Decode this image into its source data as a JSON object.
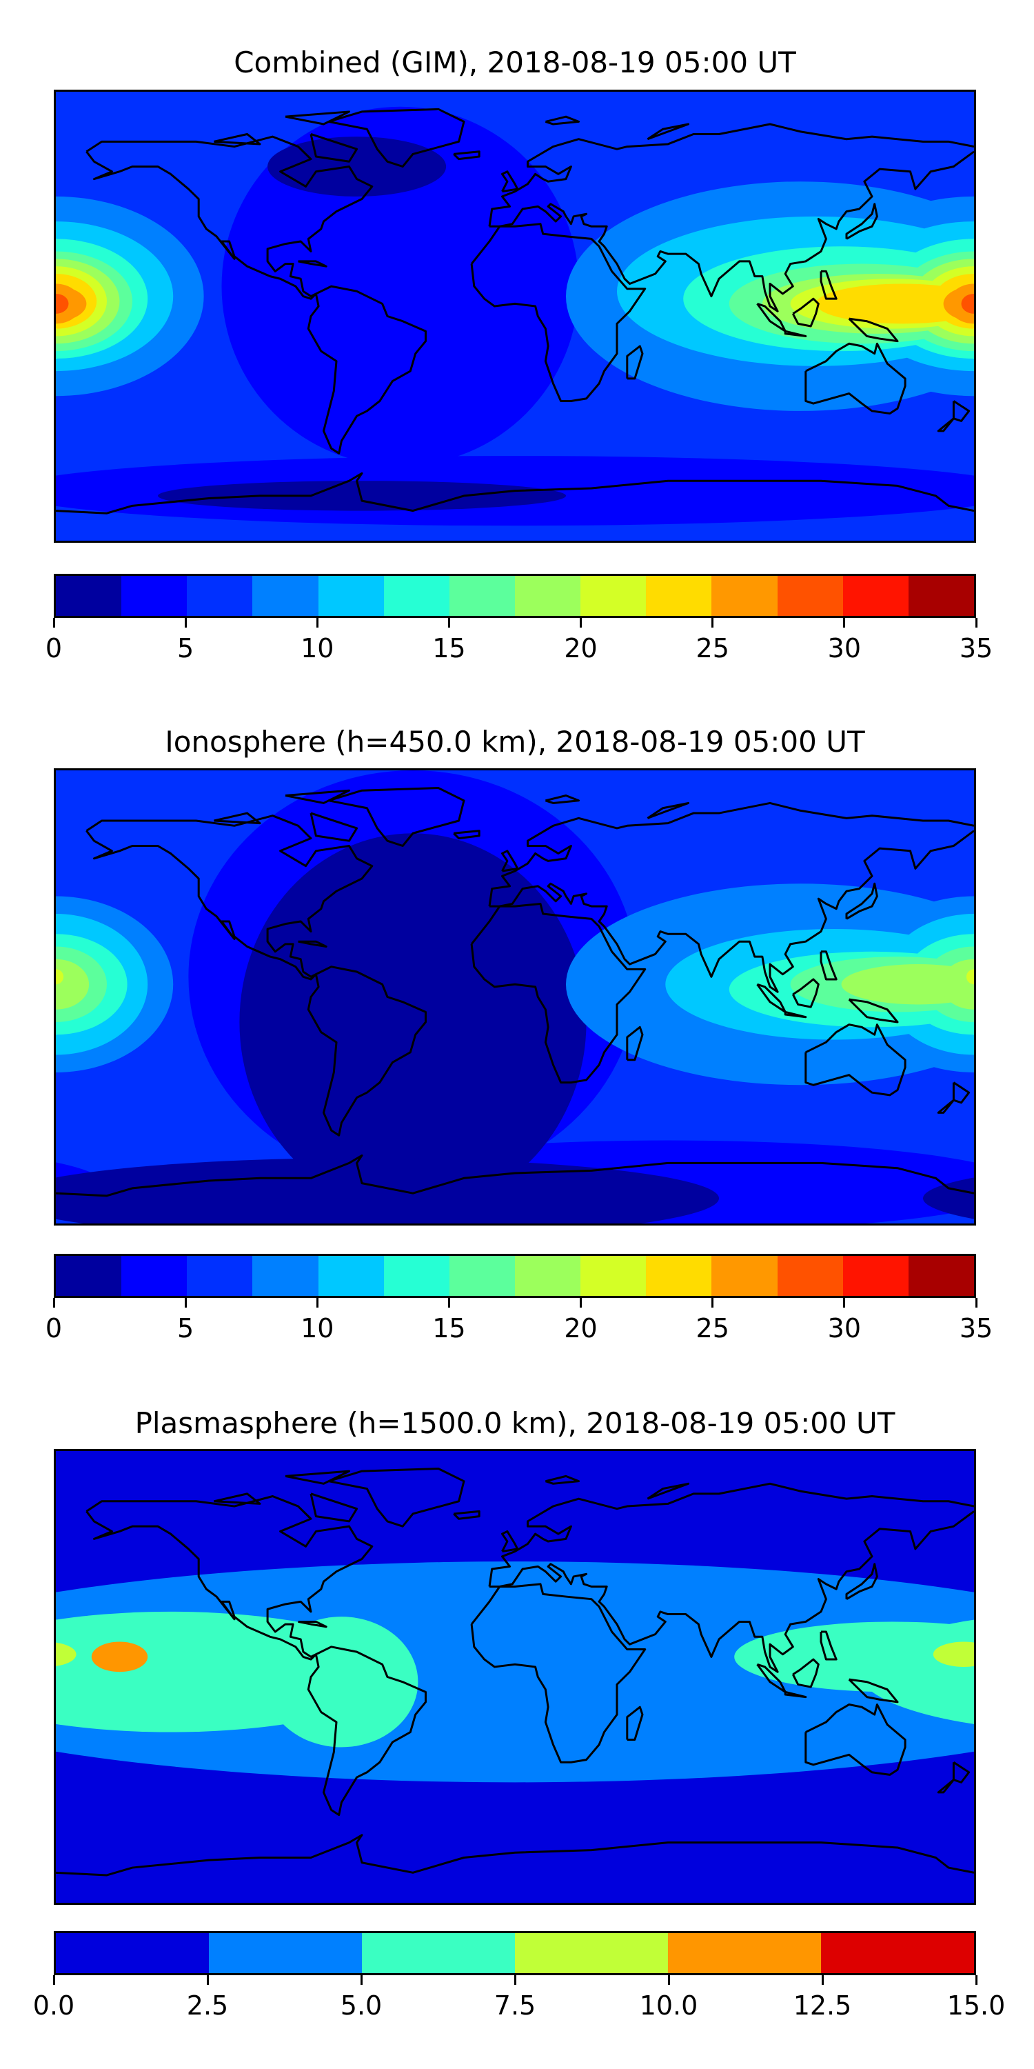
{
  "chart_data": [
    {
      "type": "heatmap",
      "title": "Combined (GIM), 2018-08-19 05:00 UT",
      "xlim": [
        -180,
        180
      ],
      "ylim": [
        -90,
        90
      ],
      "levels": [
        0,
        2.5,
        5,
        7.5,
        10,
        12.5,
        15,
        17.5,
        20,
        22.5,
        25,
        27.5,
        30,
        32.5,
        35
      ],
      "colorbar_ticks": [
        "0",
        "5",
        "10",
        "15",
        "20",
        "25",
        "30",
        "35"
      ],
      "colorbar_tick_values": [
        0,
        5,
        10,
        15,
        20,
        25,
        30,
        35
      ],
      "colors": [
        "#00009f",
        "#0000ff",
        "#0030ff",
        "#0080ff",
        "#00c8ff",
        "#26ffd4",
        "#5cff9c",
        "#9cff5c",
        "#d4ff26",
        "#ffdc00",
        "#ff9800",
        "#ff5200",
        "#ff1400",
        "#a80000"
      ],
      "background_level": 2,
      "regions": [
        {
          "level": 1,
          "lon": -45,
          "lat": 12,
          "rlon": 70,
          "rlat": 72
        },
        {
          "level": 1,
          "lon": 0,
          "lat": -70,
          "rlon": 200,
          "rlat": 14
        },
        {
          "level": 0,
          "lon": -62,
          "lat": 60,
          "rlon": 35,
          "rlat": 12
        },
        {
          "level": 0,
          "lon": -60,
          "lat": -72,
          "rlon": 80,
          "rlat": 6
        },
        {
          "level": 3,
          "lon": 112,
          "lat": 8,
          "rlon": 92,
          "rlat": 46
        },
        {
          "level": 3,
          "lon": -180,
          "lat": 8,
          "rlon": 58,
          "rlat": 40
        },
        {
          "level": 4,
          "lon": 118,
          "lat": 10,
          "rlon": 78,
          "rlat": 30
        },
        {
          "level": 4,
          "lon": -180,
          "lat": 8,
          "rlon": 46,
          "rlat": 30
        },
        {
          "level": 5,
          "lon": 128,
          "lat": 7,
          "rlon": 62,
          "rlat": 21
        },
        {
          "level": 5,
          "lon": -180,
          "lat": 7,
          "rlon": 36,
          "rlat": 24
        },
        {
          "level": 6,
          "lon": 136,
          "lat": 5,
          "rlon": 52,
          "rlat": 16
        },
        {
          "level": 6,
          "lon": -180,
          "lat": 6,
          "rlon": 30,
          "rlat": 20
        },
        {
          "level": 7,
          "lon": 142,
          "lat": 5,
          "rlon": 45,
          "rlat": 12
        },
        {
          "level": 7,
          "lon": -180,
          "lat": 6,
          "rlon": 25,
          "rlat": 17
        },
        {
          "level": 8,
          "lon": 148,
          "lat": 5,
          "rlon": 40,
          "rlat": 10
        },
        {
          "level": 8,
          "lon": -180,
          "lat": 6,
          "rlon": 20,
          "rlat": 14
        },
        {
          "level": 9,
          "lon": 152,
          "lat": 5,
          "rlon": 34,
          "rlat": 8
        },
        {
          "level": 9,
          "lon": -180,
          "lat": 6,
          "rlon": 16,
          "rlat": 11
        },
        {
          "level": 10,
          "lon": 180,
          "lat": 5,
          "rlon": 12,
          "rlat": 7
        },
        {
          "level": 10,
          "lon": -180,
          "lat": 5,
          "rlon": 10,
          "rlat": 8
        },
        {
          "level": 11,
          "lon": -180,
          "lat": 5,
          "rlon": 5,
          "rlat": 4
        }
      ]
    },
    {
      "type": "heatmap",
      "title": "Ionosphere  (h=450.0 km), 2018-08-19 05:00 UT",
      "xlim": [
        -180,
        180
      ],
      "ylim": [
        -90,
        90
      ],
      "levels": [
        0,
        2.5,
        5,
        7.5,
        10,
        12.5,
        15,
        17.5,
        20,
        22.5,
        25,
        27.5,
        30,
        32.5,
        35
      ],
      "colorbar_ticks": [
        "0",
        "5",
        "10",
        "15",
        "20",
        "25",
        "30",
        "35"
      ],
      "colorbar_tick_values": [
        0,
        5,
        10,
        15,
        20,
        25,
        30,
        35
      ],
      "colors": [
        "#00009f",
        "#0000ff",
        "#0030ff",
        "#0080ff",
        "#00c8ff",
        "#26ffd4",
        "#5cff9c",
        "#9cff5c",
        "#d4ff26",
        "#ffdc00",
        "#ff9800",
        "#ff5200",
        "#ff1400",
        "#a80000"
      ],
      "background_level": 2,
      "regions": [
        {
          "level": 1,
          "lon": -40,
          "lat": 8,
          "rlon": 88,
          "rlat": 82
        },
        {
          "level": 1,
          "lon": 60,
          "lat": -75,
          "rlon": 140,
          "rlat": 18
        },
        {
          "level": 0,
          "lon": -40,
          "lat": -10,
          "rlon": 68,
          "rlat": 75
        },
        {
          "level": 0,
          "lon": -60,
          "lat": -80,
          "rlon": 140,
          "rlat": 16
        },
        {
          "level": 3,
          "lon": 112,
          "lat": 5,
          "rlon": 92,
          "rlat": 40
        },
        {
          "level": 3,
          "lon": -180,
          "lat": 5,
          "rlon": 46,
          "rlat": 35
        },
        {
          "level": 4,
          "lon": 125,
          "lat": 5,
          "rlon": 66,
          "rlat": 22
        },
        {
          "level": 4,
          "lon": -180,
          "lat": 5,
          "rlon": 36,
          "rlat": 28
        },
        {
          "level": 5,
          "lon": 140,
          "lat": 3,
          "rlon": 56,
          "rlat": 15
        },
        {
          "level": 5,
          "lon": -180,
          "lat": 5,
          "rlon": 28,
          "rlat": 20
        },
        {
          "level": 6,
          "lon": 150,
          "lat": 5,
          "rlon": 42,
          "rlat": 11
        },
        {
          "level": 6,
          "lon": -180,
          "lat": 5,
          "rlon": 20,
          "rlat": 15
        },
        {
          "level": 7,
          "lon": 158,
          "lat": 5,
          "rlon": 30,
          "rlat": 8
        },
        {
          "level": 7,
          "lon": -180,
          "lat": 5,
          "rlon": 13,
          "rlat": 10
        },
        {
          "level": 8,
          "lon": -180,
          "lat": 8,
          "rlon": 3,
          "rlat": 3
        }
      ]
    },
    {
      "type": "heatmap",
      "title": "Plasmasphere (h=1500.0 km), 2018-08-19 05:00 UT",
      "xlim": [
        -180,
        180
      ],
      "ylim": [
        -90,
        90
      ],
      "levels": [
        0,
        2.5,
        5,
        7.5,
        10,
        12.5,
        15
      ],
      "colorbar_ticks": [
        "0.0",
        "2.5",
        "5.0",
        "7.5",
        "10.0",
        "12.5",
        "15.0"
      ],
      "colorbar_tick_values": [
        0,
        2.5,
        5,
        7.5,
        10,
        12.5,
        15
      ],
      "colors": [
        "#0000dd",
        "#0080ff",
        "#3affc2",
        "#c1ff37",
        "#ff9600",
        "#dd0000"
      ],
      "background_level": 0,
      "regions": [
        {
          "level": 1,
          "lon": 0,
          "lat": 2,
          "rlon": 260,
          "rlat": 44
        },
        {
          "level": 2,
          "lon": -135,
          "lat": 2,
          "rlon": 90,
          "rlat": 24
        },
        {
          "level": 2,
          "lon": -68,
          "lat": -2,
          "rlon": 30,
          "rlat": 26
        },
        {
          "level": 2,
          "lon": 148,
          "lat": 8,
          "rlon": 62,
          "rlat": 14
        },
        {
          "level": 3,
          "lon": 176,
          "lat": 9,
          "rlon": 12,
          "rlat": 5
        },
        {
          "level": 4,
          "lon": -155,
          "lat": 8,
          "rlon": 11,
          "rlat": 6
        }
      ]
    }
  ]
}
